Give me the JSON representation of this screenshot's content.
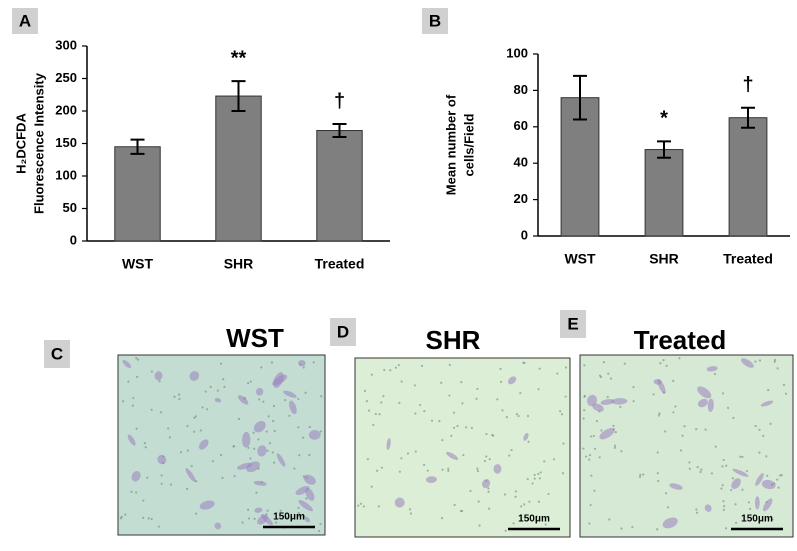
{
  "chart_data": [
    {
      "type": "bar",
      "panel": "A",
      "ylabel": [
        "H₂DCFDA",
        "Fluorescence Intensity"
      ],
      "categories": [
        "WST",
        "SHR",
        "Treated"
      ],
      "values": [
        145,
        223,
        170
      ],
      "errors": [
        11,
        23,
        10
      ],
      "value_annotations": [
        null,
        "**",
        "†"
      ],
      "color": "#7f7f7f",
      "ylim": [
        0,
        300
      ],
      "yticks": [
        0,
        50,
        100,
        150,
        200,
        250,
        300
      ],
      "grid": false
    },
    {
      "type": "bar",
      "panel": "B",
      "ylabel": [
        "Mean number of",
        "cells/Field"
      ],
      "categories": [
        "WST",
        "SHR",
        "Treated"
      ],
      "values": [
        76,
        47.5,
        65
      ],
      "errors": [
        12,
        4.5,
        5.5
      ],
      "value_annotations": [
        null,
        "*",
        "†"
      ],
      "color": "#7f7f7f",
      "ylim": [
        0,
        100
      ],
      "yticks": [
        0,
        20,
        40,
        60,
        80,
        100
      ],
      "grid": false
    }
  ],
  "panels": [
    {
      "label": "C",
      "title": "WST",
      "scale_bar": "150μm"
    },
    {
      "label": "D",
      "title": "SHR",
      "scale_bar": "150μm"
    },
    {
      "label": "E",
      "title": "Treated",
      "scale_bar": "150μm"
    }
  ]
}
